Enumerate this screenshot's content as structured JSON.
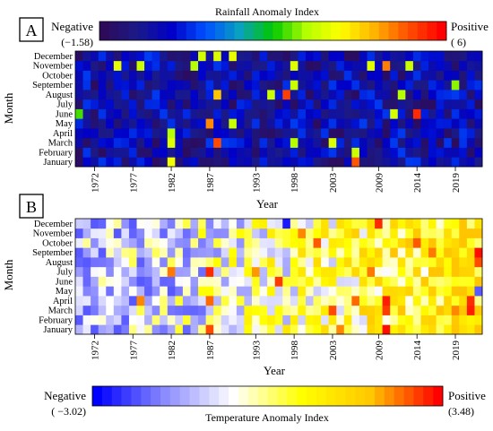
{
  "chart_data": [
    {
      "type": "heatmap",
      "panel_label": "A",
      "colorbar_title": "Rainfall Anomaly Index",
      "legend": {
        "negative_label": "Negative",
        "negative_value": "(−1.58)",
        "positive_label": "Positive",
        "positive_value": "( 6)"
      },
      "value_range": [
        -1.58,
        6
      ],
      "xlabel": "Year",
      "ylabel": "Month",
      "x_ticks": [
        "1972",
        "1977",
        "1982",
        "1987",
        "1993",
        "1998",
        "2003",
        "2009",
        "2014",
        "2019"
      ],
      "months": [
        "January",
        "February",
        "March",
        "April",
        "May",
        "June",
        "July",
        "August",
        "September",
        "October",
        "November",
        "December"
      ],
      "years": [
        1970,
        2022
      ],
      "colormap": [
        "#2d0a5a",
        "#1a1a8a",
        "#0000c8",
        "#0050ff",
        "#0aa0c0",
        "#00c800",
        "#b4ff00",
        "#ffff00",
        "#ffb400",
        "#ff5000",
        "#ff0000"
      ],
      "highlights": [
        {
          "year": 1975,
          "month": "November",
          "value": 3.5
        },
        {
          "year": 1978,
          "month": "November",
          "value": 3.2
        },
        {
          "year": 1982,
          "month": "March",
          "value": 3.4
        },
        {
          "year": 1982,
          "month": "April",
          "value": 3.0
        },
        {
          "year": 1982,
          "month": "January",
          "value": 3.6
        },
        {
          "year": 1985,
          "month": "November",
          "value": 3.0
        },
        {
          "year": 1986,
          "month": "December",
          "value": 3.3
        },
        {
          "year": 1987,
          "month": "May",
          "value": 4.8
        },
        {
          "year": 1988,
          "month": "March",
          "value": 5.3
        },
        {
          "year": 1988,
          "month": "August",
          "value": 4.3
        },
        {
          "year": 1988,
          "month": "December",
          "value": 3.4
        },
        {
          "year": 1990,
          "month": "May",
          "value": 3.2
        },
        {
          "year": 1990,
          "month": "December",
          "value": 3.5
        },
        {
          "year": 1995,
          "month": "August",
          "value": 3.2
        },
        {
          "year": 1997,
          "month": "August",
          "value": 5.4
        },
        {
          "year": 1998,
          "month": "November",
          "value": 3.4
        },
        {
          "year": 1998,
          "month": "September",
          "value": 3.2
        },
        {
          "year": 1998,
          "month": "March",
          "value": 3.0
        },
        {
          "year": 2003,
          "month": "March",
          "value": 3.4
        },
        {
          "year": 2006,
          "month": "February",
          "value": 3.2
        },
        {
          "year": 2006,
          "month": "January",
          "value": 5.2
        },
        {
          "year": 2008,
          "month": "November",
          "value": 3.4
        },
        {
          "year": 2010,
          "month": "November",
          "value": 4.9
        },
        {
          "year": 2011,
          "month": "June",
          "value": 3.3
        },
        {
          "year": 2012,
          "month": "August",
          "value": 3.0
        },
        {
          "year": 2013,
          "month": "November",
          "value": 3.2
        },
        {
          "year": 2014,
          "month": "June",
          "value": 5.6
        },
        {
          "year": 2019,
          "month": "September",
          "value": 2.8
        },
        {
          "year": 1970,
          "month": "June",
          "value": 2.5
        }
      ]
    },
    {
      "type": "heatmap",
      "panel_label": "B",
      "colorbar_title": "Temperature Anomaly Index",
      "legend": {
        "negative_label": "Negative",
        "negative_value": "( −3.02)",
        "positive_label": "Positive",
        "positive_value": "(3.48)"
      },
      "value_range": [
        -3.02,
        3.48
      ],
      "xlabel": "Year",
      "ylabel": "Month",
      "x_ticks": [
        "1972",
        "1977",
        "1982",
        "1987",
        "1993",
        "1998",
        "2003",
        "2009",
        "2014",
        "2019"
      ],
      "months": [
        "January",
        "February",
        "March",
        "April",
        "May",
        "June",
        "July",
        "August",
        "September",
        "October",
        "November",
        "December"
      ],
      "years": [
        1970,
        2022
      ],
      "colormap": [
        "#0000ff",
        "#8c8cff",
        "#ffffff",
        "#ffff00",
        "#ffc800",
        "#ff0000"
      ],
      "highlights": [
        {
          "year": 1987,
          "month": "July",
          "value": 3.2
        },
        {
          "year": 1987,
          "month": "April",
          "value": 2.8
        },
        {
          "year": 1987,
          "month": "January",
          "value": 3.0
        },
        {
          "year": 1982,
          "month": "July",
          "value": 2.7
        },
        {
          "year": 1978,
          "month": "April",
          "value": 2.6
        },
        {
          "year": 1993,
          "month": "July",
          "value": 2.5
        },
        {
          "year": 1996,
          "month": "June",
          "value": 3.1
        },
        {
          "year": 1999,
          "month": "November",
          "value": 2.6
        },
        {
          "year": 2001,
          "month": "October",
          "value": 2.9
        },
        {
          "year": 2003,
          "month": "March",
          "value": 3.0
        },
        {
          "year": 2004,
          "month": "January",
          "value": 2.6
        },
        {
          "year": 2006,
          "month": "April",
          "value": 2.8
        },
        {
          "year": 2008,
          "month": "July",
          "value": 2.7
        },
        {
          "year": 2009,
          "month": "December",
          "value": 3.2
        },
        {
          "year": 2010,
          "month": "January",
          "value": 3.4
        },
        {
          "year": 2010,
          "month": "April",
          "value": 3.3
        },
        {
          "year": 2010,
          "month": "March",
          "value": 3.1
        },
        {
          "year": 2014,
          "month": "October",
          "value": 2.9
        },
        {
          "year": 2016,
          "month": "September",
          "value": 2.7
        },
        {
          "year": 2019,
          "month": "March",
          "value": 2.6
        },
        {
          "year": 2021,
          "month": "March",
          "value": 3.3
        },
        {
          "year": 2021,
          "month": "April",
          "value": 3.2
        },
        {
          "year": 2022,
          "month": "August",
          "value": 3.0
        },
        {
          "year": 2022,
          "month": "September",
          "value": 3.4
        },
        {
          "year": 1997,
          "month": "December",
          "value": -2.8
        },
        {
          "year": 1983,
          "month": "March",
          "value": -2.0
        },
        {
          "year": 2022,
          "month": "May",
          "value": -2.2
        }
      ]
    }
  ]
}
